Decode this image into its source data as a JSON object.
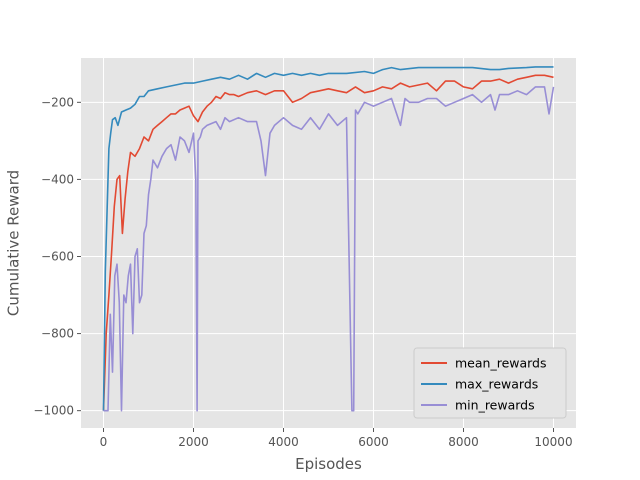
{
  "chart_data": {
    "type": "line",
    "title": "",
    "xlabel": "Episodes",
    "ylabel": "Cumulative Reward",
    "xlim": [
      -500,
      10500
    ],
    "ylim": [
      -1045,
      -85
    ],
    "xticks": [
      0,
      2000,
      4000,
      6000,
      8000,
      10000
    ],
    "yticks": [
      -1000,
      -800,
      -600,
      -400,
      -200
    ],
    "grid": true,
    "legend_position": "lower-right",
    "series": [
      {
        "name": "mean_rewards",
        "color": "#e24a33",
        "x": [
          0,
          60,
          120,
          180,
          240,
          300,
          360,
          420,
          480,
          540,
          600,
          700,
          800,
          900,
          1000,
          1100,
          1200,
          1300,
          1400,
          1500,
          1600,
          1700,
          1800,
          1900,
          2000,
          2100,
          2200,
          2300,
          2400,
          2500,
          2600,
          2700,
          2800,
          2900,
          3000,
          3200,
          3400,
          3600,
          3800,
          4000,
          4200,
          4400,
          4600,
          4800,
          5000,
          5200,
          5400,
          5600,
          5800,
          6000,
          6200,
          6400,
          6600,
          6800,
          7000,
          7200,
          7400,
          7600,
          7800,
          8000,
          8200,
          8400,
          8600,
          8800,
          9000,
          9200,
          9400,
          9600,
          9800,
          10000
        ],
        "values": [
          -1000,
          -800,
          -700,
          -590,
          -470,
          -400,
          -390,
          -540,
          -450,
          -380,
          -330,
          -340,
          -320,
          -290,
          -300,
          -270,
          -260,
          -250,
          -240,
          -230,
          -230,
          -220,
          -215,
          -210,
          -235,
          -250,
          -225,
          -210,
          -200,
          -185,
          -190,
          -175,
          -180,
          -180,
          -185,
          -175,
          -170,
          -180,
          -170,
          -170,
          -200,
          -190,
          -175,
          -170,
          -165,
          -170,
          -175,
          -160,
          -175,
          -170,
          -160,
          -165,
          -150,
          -160,
          -155,
          -150,
          -170,
          -145,
          -145,
          -160,
          -165,
          -145,
          -145,
          -140,
          -150,
          -140,
          -135,
          -130,
          -130,
          -135
        ]
      },
      {
        "name": "max_rewards",
        "color": "#348abd",
        "x": [
          0,
          40,
          80,
          120,
          160,
          200,
          260,
          320,
          400,
          500,
          600,
          700,
          800,
          900,
          1000,
          1200,
          1400,
          1600,
          1800,
          2000,
          2200,
          2400,
          2600,
          2800,
          3000,
          3200,
          3400,
          3600,
          3800,
          4000,
          4200,
          4400,
          4600,
          4800,
          5000,
          5400,
          5800,
          6000,
          6200,
          6400,
          6600,
          7000,
          7400,
          7800,
          8200,
          8600,
          8800,
          9000,
          9400,
          9600,
          9800,
          10000
        ],
        "values": [
          -1000,
          -640,
          -480,
          -320,
          -280,
          -245,
          -240,
          -260,
          -225,
          -220,
          -215,
          -205,
          -185,
          -185,
          -170,
          -165,
          -160,
          -155,
          -150,
          -150,
          -145,
          -140,
          -135,
          -140,
          -130,
          -140,
          -125,
          -135,
          -125,
          -130,
          -125,
          -130,
          -125,
          -130,
          -125,
          -125,
          -120,
          -125,
          -115,
          -110,
          -115,
          -110,
          -110,
          -110,
          -110,
          -115,
          -115,
          -112,
          -110,
          -108,
          -108,
          -108
        ]
      },
      {
        "name": "min_rewards",
        "color": "#988ed5",
        "x": [
          0,
          50,
          100,
          150,
          200,
          250,
          300,
          350,
          400,
          450,
          500,
          550,
          600,
          650,
          700,
          750,
          800,
          850,
          900,
          950,
          1000,
          1050,
          1100,
          1200,
          1300,
          1400,
          1500,
          1600,
          1700,
          1800,
          1900,
          2000,
          2050,
          2080,
          2100,
          2150,
          2200,
          2300,
          2400,
          2500,
          2600,
          2700,
          2800,
          3000,
          3200,
          3400,
          3500,
          3600,
          3700,
          3800,
          4000,
          4200,
          4400,
          4600,
          4800,
          5000,
          5200,
          5400,
          5520,
          5560,
          5600,
          5650,
          5800,
          6000,
          6200,
          6400,
          6600,
          6700,
          6800,
          7000,
          7200,
          7400,
          7600,
          7800,
          8000,
          8200,
          8400,
          8600,
          8700,
          8800,
          9000,
          9200,
          9400,
          9600,
          9800,
          9900,
          10000
        ],
        "values": [
          -1000,
          -1000,
          -1000,
          -750,
          -900,
          -650,
          -620,
          -720,
          -1000,
          -700,
          -720,
          -650,
          -620,
          -800,
          -600,
          -580,
          -720,
          -700,
          -540,
          -520,
          -440,
          -400,
          -350,
          -370,
          -340,
          -320,
          -310,
          -350,
          -290,
          -300,
          -330,
          -280,
          -400,
          -1000,
          -300,
          -290,
          -270,
          -260,
          -255,
          -250,
          -270,
          -240,
          -250,
          -240,
          -250,
          -250,
          -300,
          -390,
          -280,
          -260,
          -240,
          -260,
          -270,
          -240,
          -270,
          -230,
          -260,
          -240,
          -1000,
          -1000,
          -220,
          -230,
          -200,
          -210,
          -200,
          -190,
          -260,
          -190,
          -200,
          -200,
          -190,
          -190,
          -210,
          -200,
          -190,
          -180,
          -200,
          -180,
          -220,
          -180,
          -180,
          -170,
          -180,
          -160,
          -160,
          -230,
          -160
        ]
      }
    ]
  }
}
